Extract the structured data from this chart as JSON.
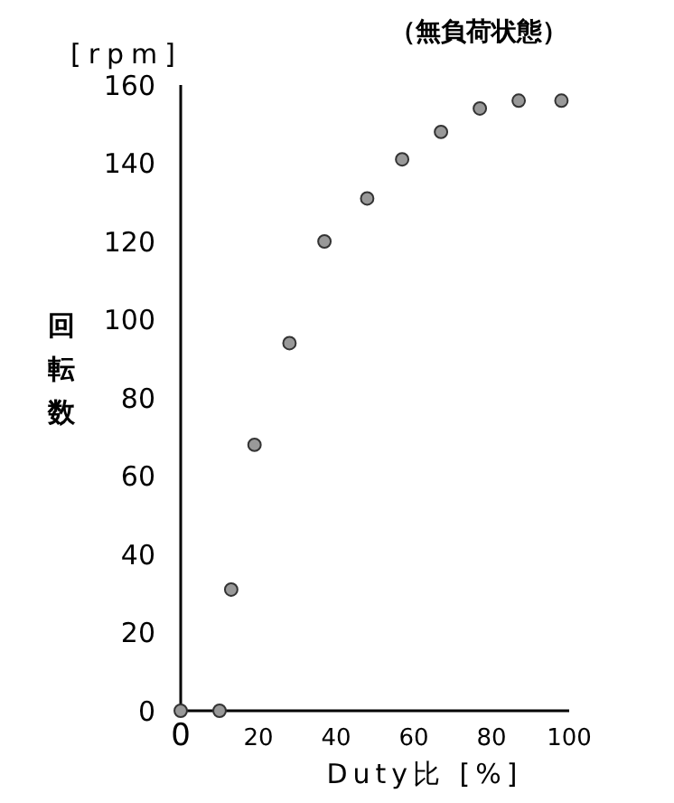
{
  "chart_data": {
    "type": "scatter",
    "title": "（無負荷状態）",
    "xlabel": "Duty比 [%]",
    "ylabel": "回転数",
    "annotations": [
      "[rpm]"
    ],
    "x": [
      0,
      10,
      13,
      19,
      28,
      37,
      48,
      57,
      67,
      77,
      87,
      98
    ],
    "series": [
      {
        "color": "#999999",
        "values": [
          0,
          0,
          31,
          68,
          94,
          120,
          131,
          141,
          148,
          154,
          156,
          156
        ]
      }
    ],
    "xlim": [
      0,
      100
    ],
    "xticks": [
      0,
      20,
      40,
      60,
      80,
      100
    ],
    "ylim": [
      0,
      160
    ],
    "yticks": [
      0,
      20,
      40,
      60,
      80,
      100,
      120,
      140,
      160
    ],
    "marker": "circle"
  }
}
